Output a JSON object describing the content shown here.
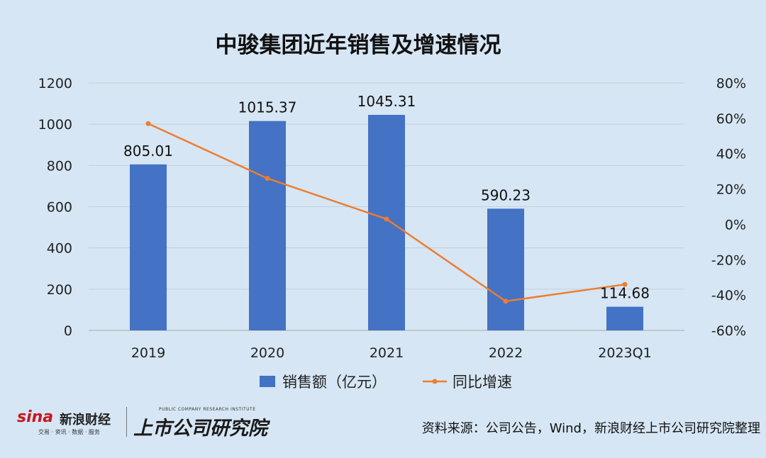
{
  "chart_data": {
    "type": "bar",
    "title": "中骏集团近年销售及增速情况",
    "categories": [
      "2019",
      "2020",
      "2021",
      "2022",
      "2023Q1"
    ],
    "series": [
      {
        "name": "销售额（亿元）",
        "type": "bar",
        "axis": "left",
        "color": "#4472c4",
        "values": [
          805.01,
          1015.37,
          1045.31,
          590.23,
          114.68
        ],
        "labels": [
          "805.01",
          "1015.37",
          "1045.31",
          "590.23",
          "114.68"
        ]
      },
      {
        "name": "同比增速",
        "type": "line",
        "axis": "right",
        "color": "#ed7d31",
        "values": [
          57,
          26,
          3,
          -43.5,
          -34
        ]
      }
    ],
    "y_left": {
      "min": 0,
      "max": 1200,
      "ticks": [
        "0",
        "200",
        "400",
        "600",
        "800",
        "1000",
        "1200"
      ],
      "tick_values": [
        0,
        200,
        400,
        600,
        800,
        1000,
        1200
      ]
    },
    "y_right": {
      "min": -60,
      "max": 80,
      "ticks": [
        "-60%",
        "-40%",
        "-20%",
        "0%",
        "20%",
        "40%",
        "60%",
        "80%"
      ],
      "tick_values": [
        -60,
        -40,
        -20,
        0,
        20,
        40,
        60,
        80
      ]
    },
    "grid": true,
    "legend_position": "bottom"
  },
  "watermark": {
    "sina_word": "sina",
    "sina_cn": "新浪财经",
    "sina_sub": "交易 · 资讯 · 数据 · 服务",
    "inst_cn": "上市公司研究院",
    "inst_en": "PUBLIC COMPANY RESEARCH INSTITUTE"
  },
  "source_text": "资料来源：公司公告，Wind，新浪财经上市公司研究院整理"
}
